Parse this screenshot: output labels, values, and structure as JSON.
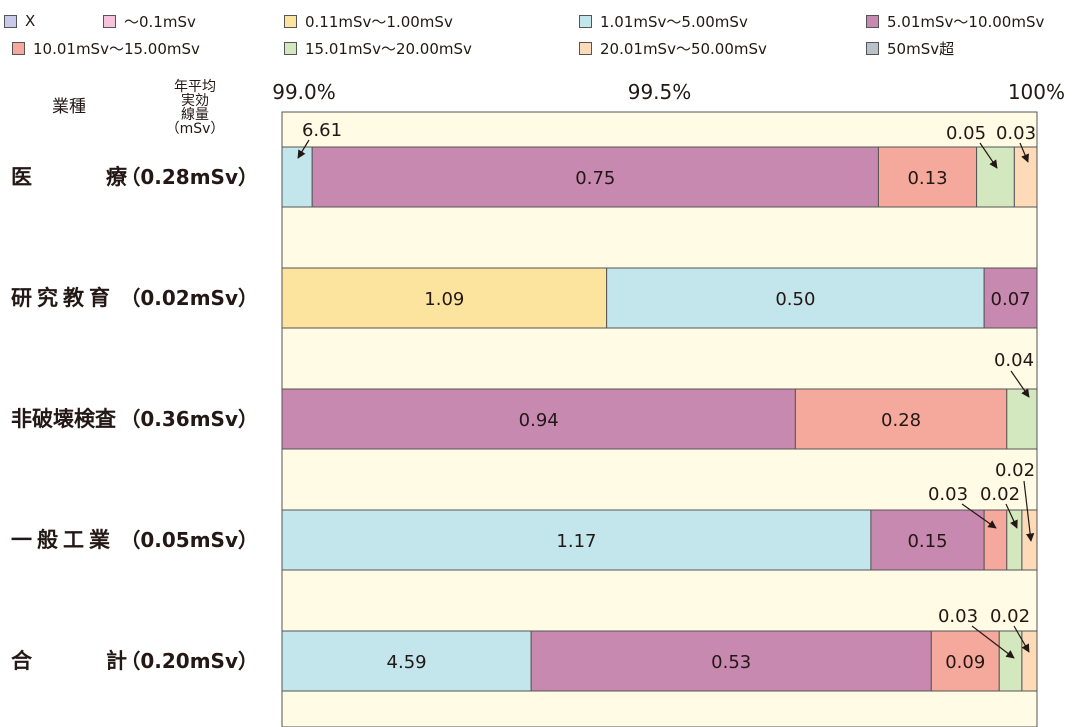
{
  "legend": [
    {
      "label": "X",
      "color": "#c9c9ea"
    },
    {
      "label": "～0.1mSv",
      "color": "#f7c3dc"
    },
    {
      "label": "0.11mSv～1.00mSv",
      "color": "#fde49e"
    },
    {
      "label": "1.01mSv～5.00mSv",
      "color": "#c3e6ec"
    },
    {
      "label": "5.01mSv～10.00mSv",
      "color": "#c889b0"
    },
    {
      "label": "10.01mSv～15.00mSv",
      "color": "#f5a99c"
    },
    {
      "label": "15.01mSv～20.00mSv",
      "color": "#d4e8c0"
    },
    {
      "label": "20.01mSv～50.00mSv",
      "color": "#fddbb8"
    },
    {
      "label": "50mSv超",
      "color": "#b8c2c8"
    }
  ],
  "headers": {
    "industry": "業種",
    "dose_line1": "年平均",
    "dose_line2": "実効",
    "dose_line3": "線量",
    "dose_line4": "（mSv）"
  },
  "chart_data": {
    "type": "bar",
    "orientation": "horizontal",
    "stacked": true,
    "xlim": [
      99.0,
      100
    ],
    "x_ticks": [
      "99.0%",
      "99.5%",
      "100%"
    ],
    "categories": [
      "医　　療（0.28mSv）",
      "研究教育（0.02mSv）",
      "非破壊検査（0.36mSv）",
      "一般工業（0.05mSv）",
      "合　　計（0.20mSv）"
    ],
    "rows": [
      {
        "name": "医療",
        "label": "医",
        "label2": "療",
        "dose": "（0.28mSv）",
        "segments": [
          {
            "band": "1.01mSv～5.00mSv",
            "value": 6.61
          },
          {
            "band": "5.01mSv～10.00mSv",
            "value": 0.75
          },
          {
            "band": "10.01mSv～15.00mSv",
            "value": 0.13
          },
          {
            "band": "15.01mSv～20.00mSv",
            "value": 0.05
          },
          {
            "band": "20.01mSv～50.00mSv",
            "value": 0.03
          }
        ]
      },
      {
        "name": "研究教育",
        "label": "研究教育",
        "label2": "",
        "dose": "（0.02mSv）",
        "segments": [
          {
            "band": "0.11mSv～1.00mSv",
            "value": 1.09
          },
          {
            "band": "1.01mSv～5.00mSv",
            "value": 0.5
          },
          {
            "band": "5.01mSv～10.00mSv",
            "value": 0.07
          }
        ]
      },
      {
        "name": "非破壊検査",
        "label": "非破壊検査",
        "label2": "",
        "dose": "（0.36mSv）",
        "segments": [
          {
            "band": "5.01mSv～10.00mSv",
            "value": 0.94
          },
          {
            "band": "10.01mSv～15.00mSv",
            "value": 0.28
          },
          {
            "band": "15.01mSv～20.00mSv",
            "value": 0.04
          }
        ]
      },
      {
        "name": "一般工業",
        "label": "一般工業",
        "label2": "",
        "dose": "（0.05mSv）",
        "segments": [
          {
            "band": "1.01mSv～5.00mSv",
            "value": 1.17
          },
          {
            "band": "5.01mSv～10.00mSv",
            "value": 0.15
          },
          {
            "band": "10.01mSv～15.00mSv",
            "value": 0.03
          },
          {
            "band": "15.01mSv～20.00mSv",
            "value": 0.02
          },
          {
            "band": "20.01mSv～50.00mSv",
            "value": 0.02
          }
        ]
      },
      {
        "name": "合計",
        "label": "合",
        "label2": "計",
        "dose": "（0.20mSv）",
        "segments": [
          {
            "band": "1.01mSv～5.00mSv",
            "value": 4.59
          },
          {
            "band": "5.01mSv～10.00mSv",
            "value": 0.53
          },
          {
            "band": "10.01mSv～15.00mSv",
            "value": 0.09
          },
          {
            "band": "15.01mSv～20.00mSv",
            "value": 0.03
          },
          {
            "band": "20.01mSv～50.00mSv",
            "value": 0.02
          }
        ]
      }
    ]
  }
}
